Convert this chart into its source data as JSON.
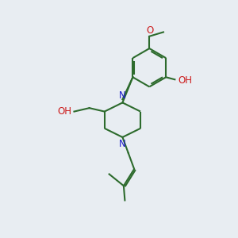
{
  "bg_color": "#e8edf2",
  "bond_color": "#2d6b2d",
  "nitrogen_color": "#1a1acc",
  "oxygen_color": "#cc1a1a",
  "line_width": 1.5,
  "font_size": 8.5,
  "figsize": [
    3.0,
    3.0
  ],
  "dpi": 100,
  "xlim": [
    0,
    10
  ],
  "ylim": [
    0,
    10
  ]
}
